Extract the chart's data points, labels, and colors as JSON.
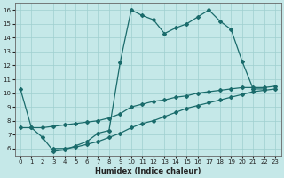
{
  "background_color": "#c5e8e8",
  "grid_color": "#9fcfcf",
  "line_color": "#1a6b6b",
  "xlabel": "Humidex (Indice chaleur)",
  "xlim": [
    -0.5,
    23.5
  ],
  "ylim": [
    5.5,
    16.5
  ],
  "xticks": [
    0,
    1,
    2,
    3,
    4,
    5,
    6,
    7,
    8,
    9,
    10,
    11,
    12,
    13,
    14,
    15,
    16,
    17,
    18,
    19,
    20,
    21,
    22,
    23
  ],
  "yticks": [
    6,
    7,
    8,
    9,
    10,
    11,
    12,
    13,
    14,
    15,
    16
  ],
  "series1_x": [
    0,
    1,
    2,
    3,
    4,
    5,
    6,
    7,
    8,
    9,
    10,
    11,
    12,
    13,
    14,
    15,
    16,
    17,
    18,
    19,
    20,
    21,
    22,
    23
  ],
  "series1_y": [
    10.3,
    7.5,
    6.8,
    5.8,
    5.9,
    6.2,
    6.5,
    7.1,
    7.3,
    12.2,
    16.0,
    15.6,
    15.3,
    14.3,
    14.7,
    15.0,
    15.5,
    16.0,
    15.2,
    14.6,
    12.3,
    10.3,
    10.3,
    null
  ],
  "series2_x": [
    0,
    1,
    2,
    3,
    4,
    5,
    6,
    7,
    8,
    9,
    10,
    11,
    12,
    13,
    14,
    15,
    16,
    17,
    18,
    19,
    20,
    21,
    22,
    23
  ],
  "series2_y": [
    7.5,
    7.5,
    7.5,
    7.6,
    7.7,
    7.8,
    7.9,
    8.0,
    8.2,
    8.5,
    9.0,
    9.2,
    9.4,
    9.5,
    9.7,
    9.8,
    10.0,
    10.1,
    10.2,
    10.3,
    10.4,
    10.4,
    10.4,
    10.5
  ],
  "series3_x": [
    3,
    4,
    5,
    6,
    7,
    8,
    9,
    10,
    11,
    12,
    13,
    14,
    15,
    16,
    17,
    18,
    19,
    20,
    21,
    22,
    23
  ],
  "series3_y": [
    6.0,
    6.0,
    6.1,
    6.3,
    6.5,
    6.8,
    7.1,
    7.5,
    7.8,
    8.0,
    8.3,
    8.6,
    8.9,
    9.1,
    9.3,
    9.5,
    9.7,
    9.9,
    10.1,
    10.2,
    10.3
  ]
}
